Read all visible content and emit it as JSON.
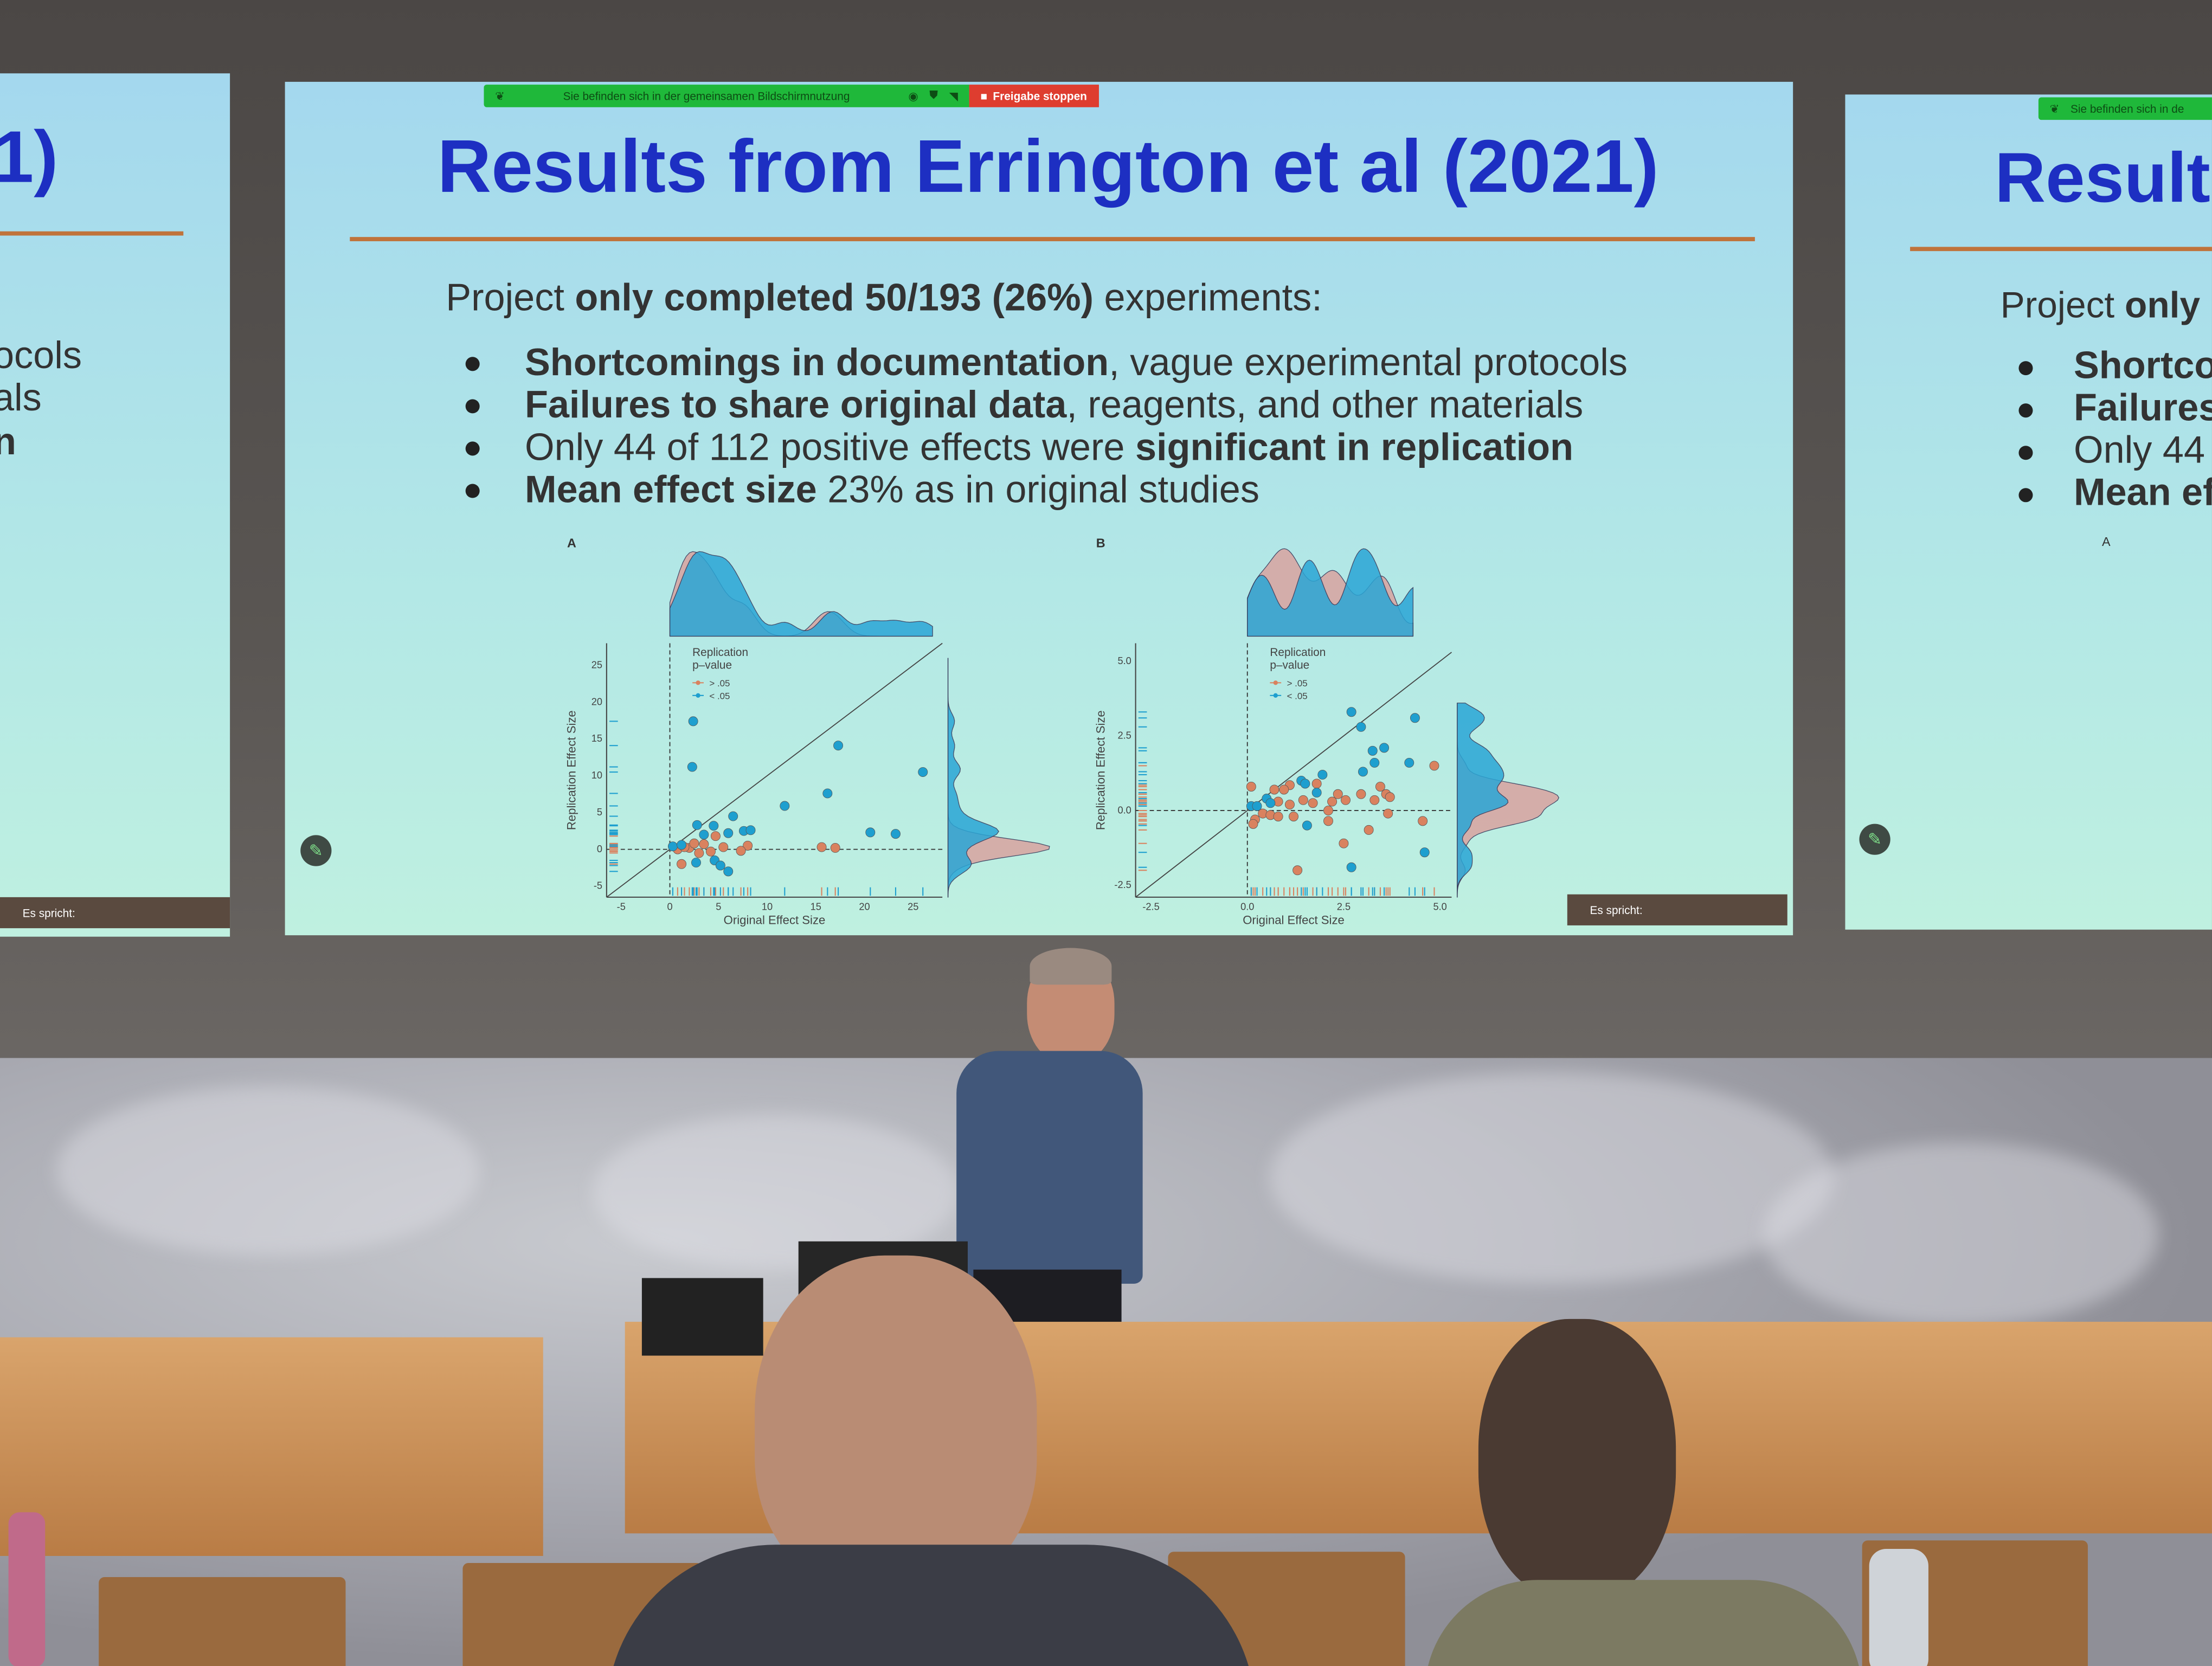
{
  "share_bar": {
    "message": "Sie befinden sich in der gemeinsamen Bildschirmnutzung",
    "stop_label": "Freigabe stoppen",
    "colors": {
      "bar": "#1fb83a",
      "stop": "#de3d2f"
    }
  },
  "slide": {
    "title": "Results from Errington et al (2021)",
    "intro": {
      "pre": "Project ",
      "bold": "only completed 50/193 (26%)",
      "post": " experiments:"
    },
    "bullets": [
      {
        "bold": "Shortcomings in documentation",
        "rest": ", vague experimental protocols"
      },
      {
        "bold": "Failures to share original data",
        "rest": ", reagents, and other materials"
      },
      {
        "pre": "Only 44 of 112 positive effects were ",
        "bold": "significant in replication"
      },
      {
        "bold": "Mean effect size",
        "rest": " 23% as in original studies"
      }
    ],
    "speaker_tag": "Es spricht:",
    "colors": {
      "title": "#1d2fc2",
      "rule": "#c0733b",
      "background": "#a4d8ee"
    }
  },
  "left_slide": {
    "title_fragment": "1)",
    "lines": [
      "ocols",
      "als",
      "n"
    ],
    "speaker_tag": "Es spricht:"
  },
  "right_slide": {
    "banner": "Sie befinden sich in de",
    "title_fragment": "Result",
    "intro": {
      "pre": "Project ",
      "bold": "only"
    },
    "bullets": [
      "Shortco",
      "Failures",
      "Only 44",
      "Mean ef"
    ],
    "panel": "A"
  },
  "chart_data": [
    {
      "type": "scatter",
      "panel": "A",
      "xlabel": "Original Effect Size",
      "ylabel": "Replication Effect Size",
      "xlim": [
        -6.5,
        28
      ],
      "ylim": [
        -6.5,
        28
      ],
      "xticks": [
        -5,
        0,
        5,
        10,
        15,
        20,
        25
      ],
      "yticks": [
        -5,
        0,
        5,
        10,
        15,
        20,
        25
      ],
      "legend": {
        "title": [
          "Replication",
          "p–value"
        ],
        "placement": "top-left",
        "entries": [
          {
            "label": "> .05",
            "color": "#d9825f"
          },
          {
            "label": "< .05",
            "color": "#1e9fcf"
          }
        ]
      },
      "series": [
        {
          "name": "< .05",
          "color": "#1e9fcf",
          "points": [
            [
              2.4,
              17.4
            ],
            [
              2.3,
              11.2
            ],
            [
              17.3,
              14.1
            ],
            [
              26,
              10.5
            ],
            [
              16.2,
              7.6
            ],
            [
              11.8,
              5.9
            ],
            [
              6.5,
              4.5
            ],
            [
              20.6,
              2.3
            ],
            [
              23.2,
              2.1
            ],
            [
              7.6,
              2.5
            ],
            [
              8.3,
              2.6
            ],
            [
              6.0,
              2.2
            ],
            [
              4.5,
              3.2
            ],
            [
              2.8,
              3.3
            ],
            [
              3.5,
              2.0
            ],
            [
              4.6,
              -1.5
            ],
            [
              5.2,
              -2.2
            ],
            [
              6.0,
              -3.0
            ],
            [
              2.7,
              -1.8
            ],
            [
              0.3,
              0.4
            ],
            [
              1.2,
              0.6
            ]
          ]
        },
        {
          "name": "> .05",
          "color": "#d9825f",
          "points": [
            [
              15.6,
              0.3
            ],
            [
              17,
              0.2
            ],
            [
              8,
              0.5
            ],
            [
              7.3,
              -0.2
            ],
            [
              5.5,
              0.3
            ],
            [
              1.2,
              -2.0
            ],
            [
              4.7,
              1.8
            ],
            [
              2,
              0.2
            ],
            [
              3,
              -0.5
            ],
            [
              3.5,
              0.7
            ],
            [
              0.8,
              0
            ],
            [
              1.5,
              0.3
            ],
            [
              2.5,
              0.8
            ],
            [
              4.2,
              -0.3
            ]
          ]
        }
      ],
      "reference_lines": [
        "y = x",
        "x = 0",
        "y = 0"
      ]
    },
    {
      "type": "scatter",
      "panel": "B",
      "xlabel": "Original Effect Size",
      "ylabel": "Replication Effect Size",
      "xlim": [
        -2.9,
        5.3
      ],
      "ylim": [
        -2.9,
        5.6
      ],
      "xticks": [
        -2.5,
        0.0,
        2.5,
        5.0
      ],
      "yticks": [
        -2.5,
        0.0,
        2.5,
        5.0
      ],
      "legend": {
        "title": [
          "Replication",
          "p–value"
        ],
        "placement": "top-left",
        "entries": [
          {
            "label": "> .05",
            "color": "#d9825f"
          },
          {
            "label": "< .05",
            "color": "#1e9fcf"
          }
        ]
      },
      "series": [
        {
          "name": "< .05",
          "color": "#1e9fcf",
          "points": [
            [
              2.7,
              3.3
            ],
            [
              2.95,
              2.8
            ],
            [
              4.35,
              3.1
            ],
            [
              3.25,
              2.0
            ],
            [
              3.55,
              2.1
            ],
            [
              3.3,
              1.6
            ],
            [
              4.2,
              1.6
            ],
            [
              3.0,
              1.3
            ],
            [
              1.95,
              1.2
            ],
            [
              1.4,
              1.0
            ],
            [
              1.5,
              0.9
            ],
            [
              1.8,
              0.6
            ],
            [
              0.5,
              0.4
            ],
            [
              0.6,
              0.25
            ],
            [
              0.1,
              0.15
            ],
            [
              0.25,
              0.15
            ],
            [
              1.55,
              -0.5
            ],
            [
              4.6,
              -1.4
            ],
            [
              2.7,
              -1.9
            ]
          ]
        },
        {
          "name": "> .05",
          "color": "#d9825f",
          "points": [
            [
              0.1,
              0.8
            ],
            [
              0.7,
              0.7
            ],
            [
              1.1,
              0.85
            ],
            [
              1.8,
              0.9
            ],
            [
              0.95,
              0.7
            ],
            [
              4.85,
              1.5
            ],
            [
              3.45,
              0.8
            ],
            [
              3.6,
              0.55
            ],
            [
              3.7,
              0.45
            ],
            [
              2.95,
              0.55
            ],
            [
              3.3,
              0.35
            ],
            [
              2.35,
              0.55
            ],
            [
              2.55,
              0.35
            ],
            [
              2.2,
              0.3
            ],
            [
              1.45,
              0.35
            ],
            [
              1.7,
              0.25
            ],
            [
              0.8,
              0.3
            ],
            [
              1.1,
              0.2
            ],
            [
              0.4,
              -0.1
            ],
            [
              0.6,
              -0.15
            ],
            [
              0.2,
              -0.3
            ],
            [
              0.15,
              -0.45
            ],
            [
              1.2,
              -0.2
            ],
            [
              0.8,
              -0.2
            ],
            [
              2.1,
              -0.35
            ],
            [
              3.65,
              -0.1
            ],
            [
              4.55,
              -0.35
            ],
            [
              3.15,
              -0.65
            ],
            [
              2.5,
              -1.1
            ],
            [
              1.3,
              -2.0
            ],
            [
              2.1,
              0.0
            ]
          ]
        }
      ],
      "reference_lines": [
        "y = x",
        "x = 0",
        "y = 0"
      ]
    }
  ]
}
